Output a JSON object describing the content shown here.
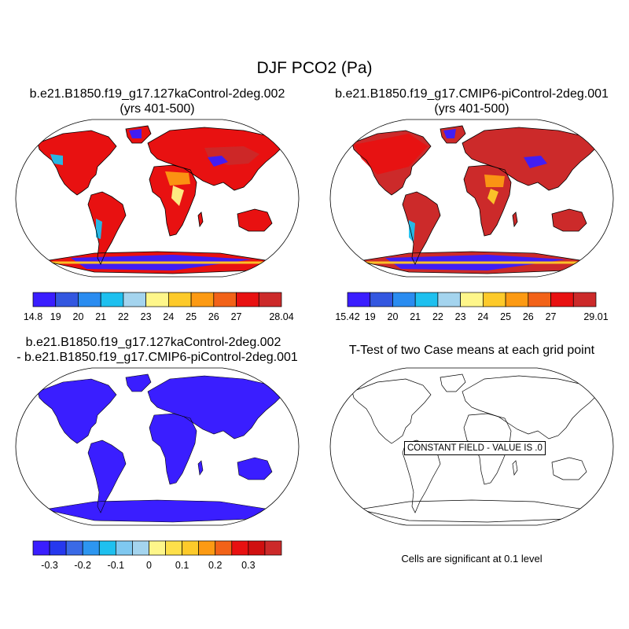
{
  "title": "DJF PCO2 (Pa)",
  "panels": {
    "top_left": {
      "title_line1": "b.e21.B1850.f19_g17.127kaControl-2deg.002",
      "title_line2": "(yrs 401-500)",
      "colorbar": {
        "colors": [
          "#3a1eff",
          "#3357e0",
          "#2a8cf0",
          "#1ec0ef",
          "#a4d4ee",
          "#fef68a",
          "#fdca2a",
          "#fc9a13",
          "#f26218",
          "#e81111",
          "#cc2a2a"
        ],
        "labels": [
          "14.8",
          "19",
          "20",
          "21",
          "22",
          "23",
          "24",
          "25",
          "26",
          "27",
          "28.04"
        ]
      }
    },
    "top_right": {
      "title_line1": "b.e21.B1850.f19_g17.CMIP6-piControl-2deg.001",
      "title_line2": "(yrs 401-500)",
      "colorbar": {
        "colors": [
          "#3a1eff",
          "#3357e0",
          "#2a8cf0",
          "#1ec0ef",
          "#a4d4ee",
          "#fef68a",
          "#fdca2a",
          "#fc9a13",
          "#f26218",
          "#e81111",
          "#cc2a2a"
        ],
        "labels": [
          "15.42",
          "19",
          "20",
          "21",
          "22",
          "23",
          "24",
          "25",
          "26",
          "27",
          "29.01"
        ]
      }
    },
    "bottom_left": {
      "title_line1": "b.e21.B1850.f19_g17.127kaControl-2deg.002",
      "title_line2": "- b.e21.B1850.f19_g17.CMIP6-piControl-2deg.001",
      "colorbar": {
        "colors": [
          "#3a1eff",
          "#2638ee",
          "#3a6ae6",
          "#2d96f0",
          "#1ec0ef",
          "#7fc8f0",
          "#a4d4ee",
          "#fef68a",
          "#fee04a",
          "#fdca2a",
          "#fc9a13",
          "#f26218",
          "#e81111",
          "#d01010",
          "#cc2a2a"
        ],
        "labels": [
          "-0.3",
          "-0.2",
          "-0.1",
          "0",
          "0.1",
          "0.2",
          "0.3"
        ]
      }
    },
    "bottom_right": {
      "title": "T-Test of two Case means at each grid point",
      "annotation": "CONSTANT FIELD - VALUE IS .0",
      "note": "Cells are significant at 0.1 level"
    }
  },
  "colors": {
    "land_warm": "#e81111",
    "land_dark": "#cc2a2a",
    "land_orange": "#fc9a13",
    "land_yellow": "#fef68a",
    "land_blue": "#3a1eff",
    "land_light_blue": "#1ec0ef",
    "difference_land": "#3a1eff",
    "coastline": "#000000"
  }
}
